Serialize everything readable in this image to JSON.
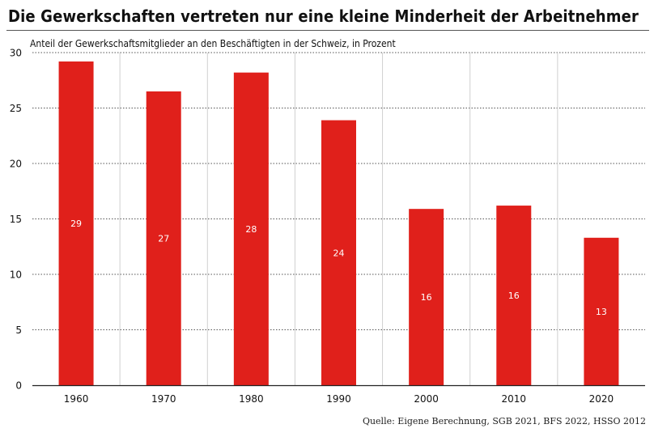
{
  "header": {
    "title": "Die Gewerkschaften vertreten nur eine kleine Minderheit der Arbeitnehmer",
    "subtitle": "Anteil der Gewerkschaftsmitglieder an den Beschäftigten in der Schweiz, in Prozent"
  },
  "footer": {
    "source": "Quelle: Eigene Berechnung, SGB 2021, BFS 2022, HSSO 2012"
  },
  "colors": {
    "bar": "#e0201b",
    "grid": "#555555",
    "text": "#111111"
  },
  "chart_data": {
    "type": "bar",
    "categories": [
      "1960",
      "1970",
      "1980",
      "1990",
      "2000",
      "2010",
      "2020"
    ],
    "values": [
      29.2,
      26.5,
      28.2,
      23.9,
      15.9,
      16.2,
      13.3
    ],
    "data_labels": [
      "29",
      "27",
      "28",
      "24",
      "16",
      "16",
      "13"
    ],
    "yticks": [
      "0",
      "5",
      "10",
      "15",
      "20",
      "25",
      "30"
    ],
    "ylim": [
      0,
      30
    ],
    "grid": true,
    "legend": "none"
  }
}
